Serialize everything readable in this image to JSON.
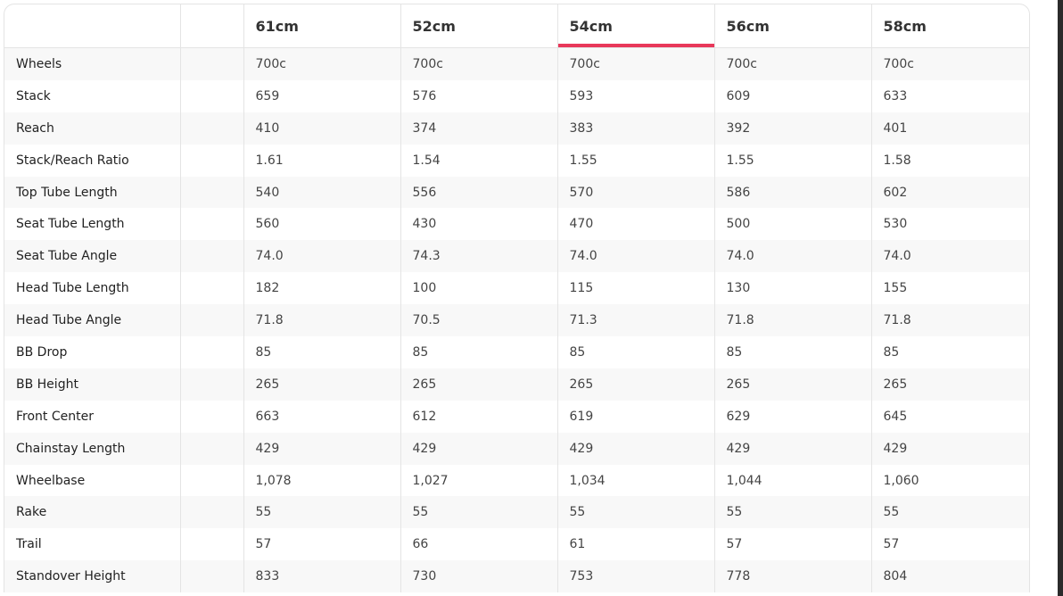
{
  "accent": "#e8385a",
  "table": {
    "headers": [
      "",
      "",
      "61cm",
      "52cm",
      "54cm",
      "56cm",
      "58cm"
    ],
    "active_header": "54cm",
    "rows": [
      {
        "label": "Wheels",
        "values": [
          "700c",
          "700c",
          "700c",
          "700c",
          "700c"
        ]
      },
      {
        "label": "Stack",
        "values": [
          "659",
          "576",
          "593",
          "609",
          "633"
        ]
      },
      {
        "label": "Reach",
        "values": [
          "410",
          "374",
          "383",
          "392",
          "401"
        ]
      },
      {
        "label": "Stack/Reach Ratio",
        "values": [
          "1.61",
          "1.54",
          "1.55",
          "1.55",
          "1.58"
        ]
      },
      {
        "label": "Top Tube Length",
        "values": [
          "540",
          "556",
          "570",
          "586",
          "602"
        ]
      },
      {
        "label": "Seat Tube Length",
        "values": [
          "560",
          "430",
          "470",
          "500",
          "530"
        ]
      },
      {
        "label": "Seat Tube Angle",
        "values": [
          "74.0",
          "74.3",
          "74.0",
          "74.0",
          "74.0"
        ]
      },
      {
        "label": "Head Tube Length",
        "values": [
          "182",
          "100",
          "115",
          "130",
          "155"
        ]
      },
      {
        "label": "Head Tube Angle",
        "values": [
          "71.8",
          "70.5",
          "71.3",
          "71.8",
          "71.8"
        ]
      },
      {
        "label": "BB Drop",
        "values": [
          "85",
          "85",
          "85",
          "85",
          "85"
        ]
      },
      {
        "label": "BB Height",
        "values": [
          "265",
          "265",
          "265",
          "265",
          "265"
        ]
      },
      {
        "label": "Front Center",
        "values": [
          "663",
          "612",
          "619",
          "629",
          "645"
        ]
      },
      {
        "label": "Chainstay Length",
        "values": [
          "429",
          "429",
          "429",
          "429",
          "429"
        ]
      },
      {
        "label": "Wheelbase",
        "values": [
          "1,078",
          "1,027",
          "1,034",
          "1,044",
          "1,060"
        ]
      },
      {
        "label": "Rake",
        "values": [
          "55",
          "55",
          "55",
          "55",
          "55"
        ]
      },
      {
        "label": "Trail",
        "values": [
          "57",
          "66",
          "61",
          "57",
          "57"
        ]
      },
      {
        "label": "Standover Height",
        "values": [
          "833",
          "730",
          "753",
          "778",
          "804"
        ]
      }
    ]
  }
}
